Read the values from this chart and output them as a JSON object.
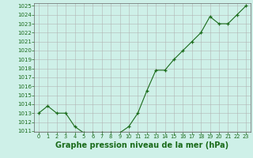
{
  "x": [
    0,
    1,
    2,
    3,
    4,
    5,
    6,
    7,
    8,
    9,
    10,
    11,
    12,
    13,
    14,
    15,
    16,
    17,
    18,
    19,
    20,
    21,
    22,
    23
  ],
  "y": [
    1013.0,
    1013.8,
    1013.0,
    1013.0,
    1011.5,
    1010.8,
    1010.8,
    1010.8,
    1010.8,
    1010.8,
    1011.5,
    1013.0,
    1015.5,
    1017.8,
    1017.8,
    1019.0,
    1020.0,
    1021.0,
    1022.0,
    1023.8,
    1023.0,
    1023.0,
    1024.0,
    1025.0
  ],
  "ylim_min": 1011,
  "ylim_max": 1025,
  "xlim_min": -0.5,
  "xlim_max": 23.5,
  "yticks": [
    1011,
    1012,
    1013,
    1014,
    1015,
    1016,
    1017,
    1018,
    1019,
    1020,
    1021,
    1022,
    1023,
    1024,
    1025
  ],
  "xticks": [
    0,
    1,
    2,
    3,
    4,
    5,
    6,
    7,
    8,
    9,
    10,
    11,
    12,
    13,
    14,
    15,
    16,
    17,
    18,
    19,
    20,
    21,
    22,
    23
  ],
  "line_color": "#1a6b1a",
  "marker_color": "#1a6b1a",
  "bg_color": "#cef0e8",
  "grid_color": "#b0b0b0",
  "xlabel": "Graphe pression niveau de la mer (hPa)",
  "xlabel_color": "#1a6b1a",
  "tick_color": "#1a6b1a",
  "ytick_fontsize": 5.0,
  "xtick_fontsize": 4.8,
  "xlabel_fontsize": 7.0,
  "marker_size": 3.0,
  "line_width": 0.8
}
